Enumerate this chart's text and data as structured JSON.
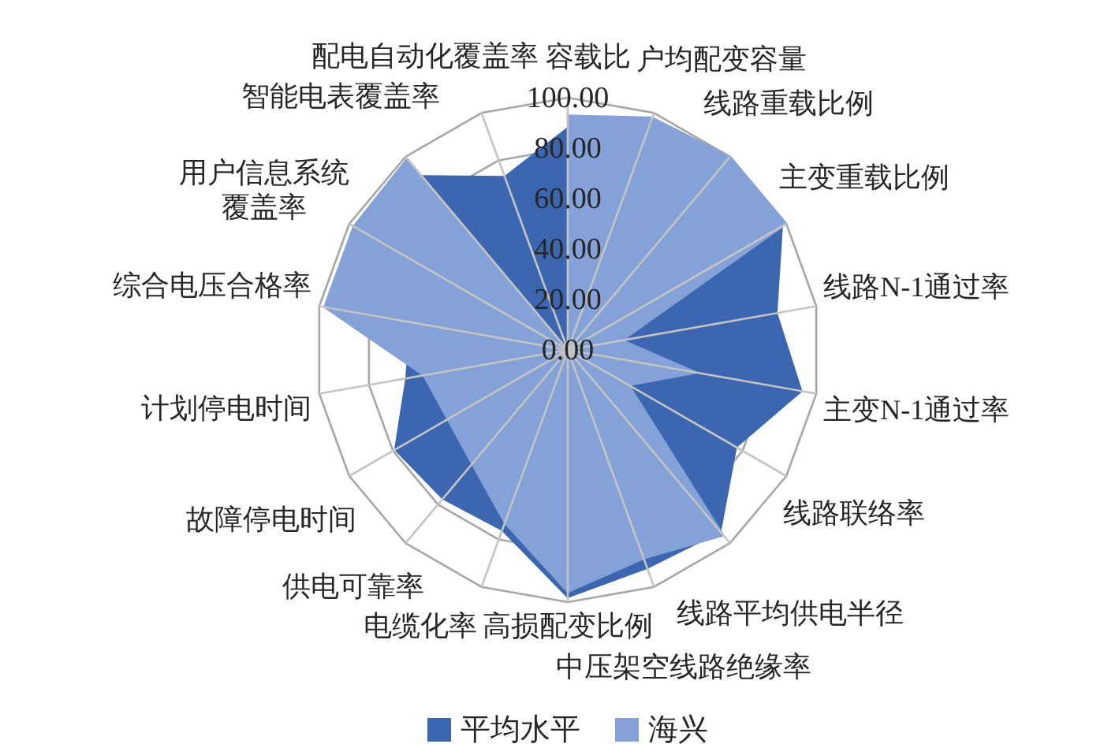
{
  "chart_data": {
    "type": "radar",
    "categories": [
      "容载比",
      "户均配变容量",
      "线路重载比例",
      "主变重载比例",
      "线路N-1通过率",
      "主变N-1通过率",
      "线路联络率",
      "线路平均供电半径",
      "中压架空线路绝缘率",
      "高损配变比例",
      "电缆化率",
      "供电可靠率",
      "故障停电时间",
      "计划停电时间",
      "综合电压合格率",
      "用户信息系统覆盖率",
      "智能电表覆盖率",
      "配电自动化覆盖率"
    ],
    "series": [
      {
        "name": "平均水平",
        "color": "#3d66b1",
        "values": [
          88,
          null,
          null,
          98,
          84,
          94,
          77,
          94,
          92,
          98,
          76,
          77,
          79,
          65,
          null,
          null,
          90,
          73
        ]
      },
      {
        "name": "海兴",
        "color": "#84a2d7",
        "values": [
          93,
          98,
          100,
          100,
          22,
          52,
          28,
          96,
          88,
          96,
          73,
          59,
          55,
          58,
          98,
          98,
          99,
          0
        ]
      }
    ],
    "ylim": [
      0,
      100
    ],
    "yticks": [
      {
        "value": 0,
        "label": "0.00"
      },
      {
        "value": 20,
        "label": "20.00"
      },
      {
        "value": 40,
        "label": "40.00"
      },
      {
        "value": 60,
        "label": "60.00"
      },
      {
        "value": 80,
        "label": "80.00"
      },
      {
        "value": 100,
        "label": "100.00"
      }
    ],
    "grid": true,
    "legend": "bottom"
  }
}
